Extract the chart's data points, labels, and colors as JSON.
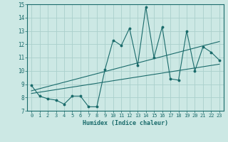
{
  "title": "",
  "xlabel": "Humidex (Indice chaleur)",
  "bg_color": "#cce8e4",
  "line_color": "#1a6b6b",
  "grid_color": "#aad0cc",
  "xlim": [
    -0.5,
    23.5
  ],
  "ylim": [
    7,
    15
  ],
  "xticks": [
    0,
    1,
    2,
    3,
    4,
    5,
    6,
    7,
    8,
    9,
    10,
    11,
    12,
    13,
    14,
    15,
    16,
    17,
    18,
    19,
    20,
    21,
    22,
    23
  ],
  "yticks": [
    7,
    8,
    9,
    10,
    11,
    12,
    13,
    14,
    15
  ],
  "series1_x": [
    0,
    1,
    2,
    3,
    4,
    5,
    6,
    7,
    8,
    9,
    10,
    11,
    12,
    13,
    14,
    15,
    16,
    17,
    18,
    19,
    20,
    21,
    22,
    23
  ],
  "series1_y": [
    8.9,
    8.1,
    7.9,
    7.8,
    7.5,
    8.1,
    8.1,
    7.3,
    7.3,
    10.1,
    12.3,
    11.9,
    13.2,
    10.4,
    14.8,
    11.0,
    13.3,
    9.4,
    9.3,
    13.0,
    10.0,
    11.8,
    11.4,
    10.8
  ],
  "trend1_x": [
    0,
    23
  ],
  "trend1_y": [
    8.3,
    10.5
  ],
  "trend2_x": [
    0,
    23
  ],
  "trend2_y": [
    8.5,
    12.2
  ]
}
